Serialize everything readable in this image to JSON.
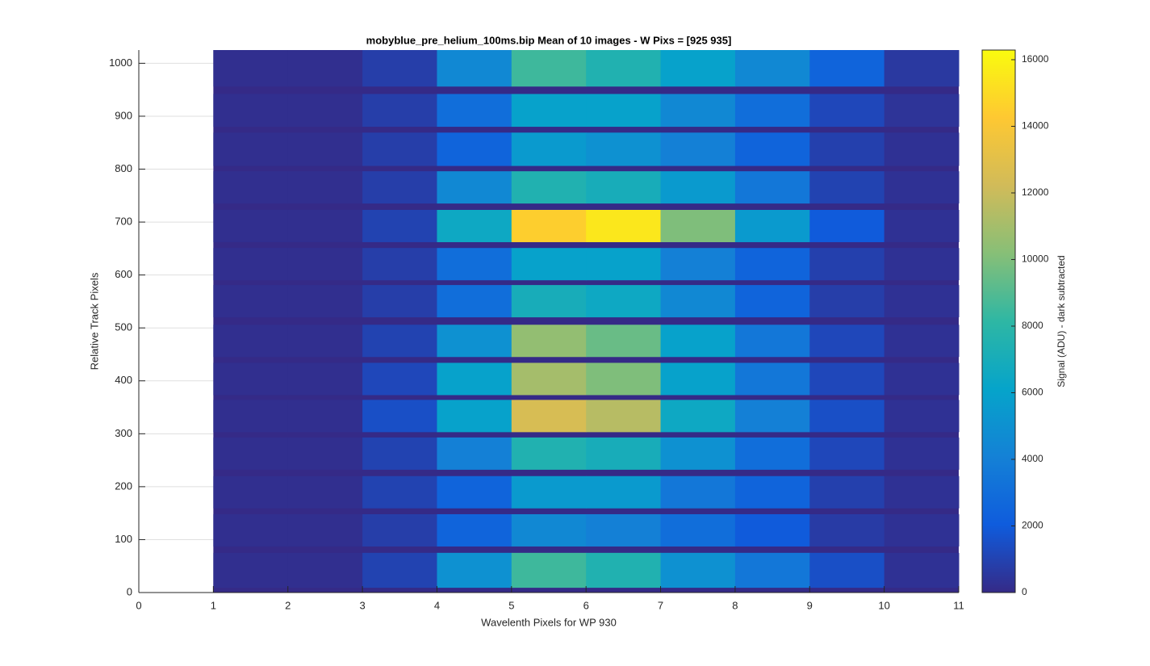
{
  "chart_data": {
    "type": "heatmap",
    "title": "mobyblue_pre_helium_100ms.bip  Mean of 10 images - W Pixs = [925  935]",
    "xlabel": "Wavelenth Pixels for WP 930",
    "ylabel": "Relative Track Pixels",
    "colorbar_label": "Signal (ADU) - dark subtracted",
    "xlim": [
      0,
      11
    ],
    "xticks": [
      0,
      1,
      2,
      3,
      4,
      5,
      6,
      7,
      8,
      9,
      10,
      11
    ],
    "ylim": [
      0,
      1025
    ],
    "yticks": [
      0,
      100,
      200,
      300,
      400,
      500,
      600,
      700,
      800,
      900,
      1000
    ],
    "clim": [
      0,
      16290
    ],
    "cticks": [
      0,
      2000,
      4000,
      6000,
      8000,
      10000,
      12000,
      14000,
      16000
    ],
    "grid": true,
    "colormap": [
      "#352a87",
      "#0f5cdd",
      "#1481d6",
      "#06a4ca",
      "#2eb7a4",
      "#87bf77",
      "#d1bb59",
      "#fec832",
      "#f9fb0e"
    ],
    "xbins": [
      1,
      2,
      3,
      4,
      5,
      6,
      7,
      8,
      9,
      10,
      11
    ],
    "rows": [
      {
        "y": [
          9,
          75
        ],
        "values": [
          200,
          200,
          1000,
          5000,
          8500,
          7500,
          5000,
          3500,
          1500,
          300
        ]
      },
      {
        "y": [
          87,
          148
        ],
        "values": [
          200,
          200,
          800,
          2500,
          4500,
          4000,
          3000,
          2000,
          700,
          300
        ]
      },
      {
        "y": [
          159,
          220
        ],
        "values": [
          200,
          200,
          1000,
          2500,
          5500,
          5500,
          3500,
          2500,
          900,
          300
        ]
      },
      {
        "y": [
          232,
          293
        ],
        "values": [
          200,
          200,
          1000,
          4000,
          7500,
          7000,
          5000,
          3000,
          1200,
          300
        ]
      },
      {
        "y": [
          303,
          364
        ],
        "values": [
          200,
          200,
          1500,
          6000,
          12500,
          11500,
          6500,
          4000,
          1500,
          300
        ]
      },
      {
        "y": [
          373,
          434
        ],
        "values": [
          200,
          200,
          1200,
          6000,
          11000,
          10000,
          6000,
          3500,
          1200,
          300
        ]
      },
      {
        "y": [
          445,
          506
        ],
        "values": [
          200,
          200,
          1000,
          5000,
          10500,
          9500,
          6000,
          3500,
          1200,
          300
        ]
      },
      {
        "y": [
          520,
          581
        ],
        "values": [
          200,
          200,
          800,
          3000,
          7000,
          6500,
          4500,
          2500,
          800,
          300
        ]
      },
      {
        "y": [
          590,
          651
        ],
        "values": [
          200,
          200,
          800,
          3000,
          6000,
          6000,
          4000,
          2500,
          900,
          300
        ]
      },
      {
        "y": [
          662,
          723
        ],
        "values": [
          200,
          200,
          1000,
          6500,
          14500,
          15500,
          10000,
          5500,
          2000,
          300
        ]
      },
      {
        "y": [
          735,
          796
        ],
        "values": [
          200,
          200,
          800,
          4500,
          7500,
          7000,
          5500,
          3500,
          1000,
          300
        ]
      },
      {
        "y": [
          806,
          869
        ],
        "values": [
          200,
          200,
          800,
          2500,
          5500,
          5000,
          4000,
          2500,
          900,
          300
        ]
      },
      {
        "y": [
          880,
          942
        ],
        "values": [
          200,
          200,
          800,
          3000,
          6000,
          6000,
          4500,
          3000,
          1200,
          400
        ]
      },
      {
        "y": [
          956,
          1025
        ],
        "values": [
          200,
          200,
          800,
          4500,
          8500,
          7500,
          6000,
          4500,
          2500,
          600
        ]
      }
    ]
  }
}
